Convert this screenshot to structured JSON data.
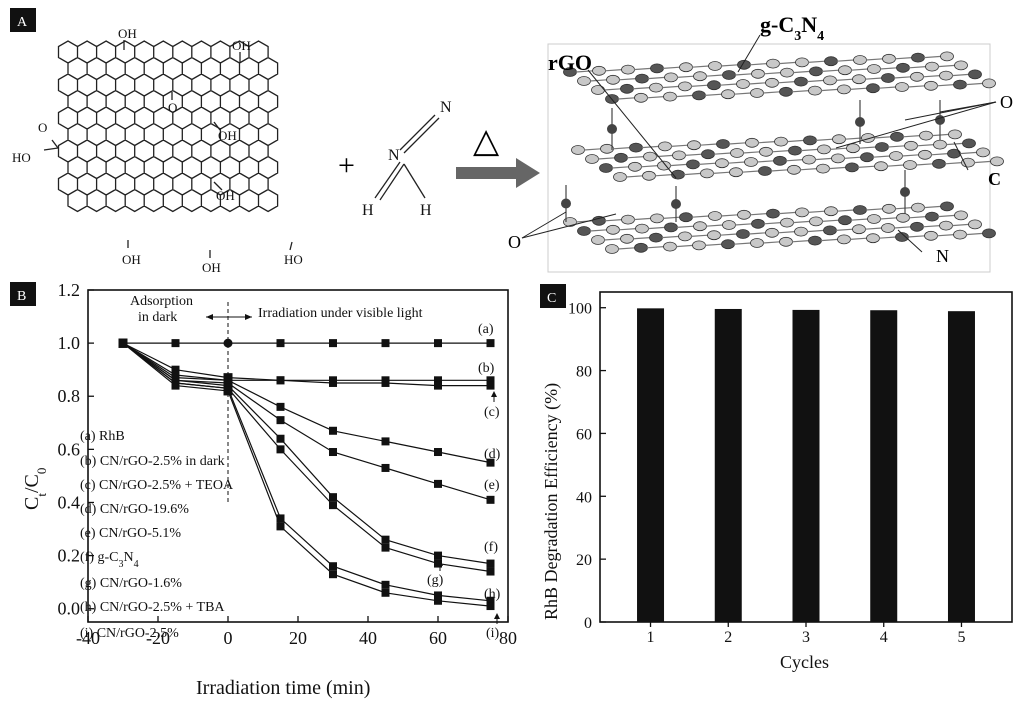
{
  "panelA": {
    "tag": "A",
    "structure_labels": [
      "OH",
      "OH",
      "O",
      "OH",
      "HO",
      "OH",
      "OH",
      "OH"
    ],
    "cooh_label": "HO",
    "cooh_o": "O",
    "plus": "+",
    "cyanamide": {
      "n1": "N",
      "n2": "N",
      "h1": "H",
      "h2": "H"
    },
    "heat_symbol": "△",
    "model_labels": {
      "gcn": "g-C3N4",
      "rgo": "rGO",
      "o_right": "O",
      "c": "C",
      "o_left": "O",
      "n": "N"
    }
  },
  "chart_data": [
    {
      "panel": "B",
      "type": "line",
      "xlabel": "Irradiation time (min)",
      "ylabel": "Ct/C0",
      "xlim": [
        -40,
        80
      ],
      "ylim": [
        -0.05,
        1.2
      ],
      "xticks": [
        "-40",
        "-20",
        "0",
        "20",
        "40",
        "60",
        "80"
      ],
      "yticks": [
        "0.0",
        "0.2",
        "0.4",
        "0.6",
        "0.8",
        "1.0",
        "1.2"
      ],
      "annotations": {
        "dark": "Adsorption",
        "dark2": "in dark",
        "light": "Irradiation under visible light"
      },
      "x": [
        -30,
        -15,
        0,
        15,
        30,
        45,
        60,
        75
      ],
      "series": [
        {
          "id": "a",
          "name": "(a) RhB",
          "values": [
            1.0,
            1.0,
            1.0,
            1.0,
            1.0,
            1.0,
            1.0,
            1.0
          ]
        },
        {
          "id": "b",
          "name": "(b) CN/rGO-2.5% in dark",
          "values": [
            1.0,
            0.9,
            0.87,
            0.86,
            0.86,
            0.86,
            0.86,
            0.86
          ]
        },
        {
          "id": "c",
          "name": "(c) CN/rGO-2.5% + TEOA",
          "values": [
            1.0,
            0.88,
            0.86,
            0.86,
            0.85,
            0.85,
            0.84,
            0.84
          ]
        },
        {
          "id": "d",
          "name": "(d) CN/rGO-19.6%",
          "values": [
            1.0,
            0.87,
            0.86,
            0.76,
            0.67,
            0.63,
            0.59,
            0.55
          ]
        },
        {
          "id": "e",
          "name": "(e) CN/rGO-5.1%",
          "values": [
            1.0,
            0.86,
            0.85,
            0.71,
            0.59,
            0.53,
            0.47,
            0.41
          ]
        },
        {
          "id": "f",
          "name": "(f) g-C3N4",
          "values": [
            1.0,
            0.86,
            0.84,
            0.64,
            0.42,
            0.26,
            0.2,
            0.17
          ]
        },
        {
          "id": "g",
          "name": "(g) CN/rGO-1.6%",
          "values": [
            1.0,
            0.85,
            0.83,
            0.6,
            0.39,
            0.23,
            0.17,
            0.14
          ]
        },
        {
          "id": "h",
          "name": "(h) CN/rGO-2.5% + TBA",
          "values": [
            1.0,
            0.85,
            0.83,
            0.34,
            0.16,
            0.09,
            0.05,
            0.03
          ]
        },
        {
          "id": "i",
          "name": "(i) CN/rGO-2.5%",
          "values": [
            1.0,
            0.84,
            0.82,
            0.31,
            0.13,
            0.06,
            0.03,
            0.01
          ]
        }
      ],
      "end_labels": [
        "(a)",
        "(b)",
        "(c)",
        "(d)",
        "(e)",
        "(f)",
        "(g)",
        "(h)",
        "(i)"
      ]
    },
    {
      "panel": "C",
      "type": "bar",
      "xlabel": "Cycles",
      "ylabel": "RhB Degradation Efficiency (%)",
      "categories": [
        "1",
        "2",
        "3",
        "4",
        "5"
      ],
      "values": [
        99.8,
        99.6,
        99.3,
        99.2,
        98.9
      ],
      "ylim": [
        0,
        105
      ],
      "yticks": [
        "0",
        "20",
        "40",
        "60",
        "80",
        "100"
      ]
    }
  ],
  "panel_tags": {
    "B": "B",
    "C": "C"
  }
}
